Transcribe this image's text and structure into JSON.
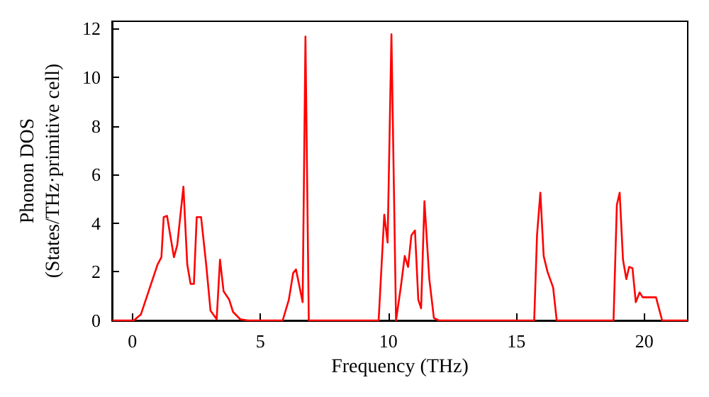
{
  "chart_data": {
    "type": "line",
    "xlabel": "Frequency (THz)",
    "ylabel": "Phonon DOS\n(States/THz·primitive cell)",
    "xlim": [
      -0.8,
      21.7
    ],
    "ylim": [
      0,
      12.3
    ],
    "xticks": [
      0,
      5,
      10,
      15,
      20
    ],
    "yticks": [
      0,
      2,
      4,
      6,
      8,
      10,
      12
    ],
    "grid": false,
    "marker": "none",
    "line_style": "solid",
    "series": [
      {
        "color": "#ff0000",
        "x": [
          -0.78,
          0.05,
          0.33,
          0.98,
          1.13,
          1.22,
          1.35,
          1.62,
          1.75,
          1.99,
          2.14,
          2.27,
          2.4,
          2.51,
          2.68,
          2.88,
          3.05,
          3.29,
          3.42,
          3.56,
          3.78,
          3.93,
          4.21,
          4.5,
          5.87,
          6.11,
          6.28,
          6.39,
          6.65,
          6.76,
          6.89,
          9.62,
          9.84,
          9.97,
          10.12,
          10.3,
          10.49,
          10.64,
          10.77,
          10.9,
          11.04,
          11.17,
          11.28,
          11.41,
          11.6,
          11.78,
          11.97,
          15.7,
          15.81,
          15.94,
          16.07,
          16.22,
          16.44,
          16.58,
          18.8,
          18.93,
          19.04,
          19.17,
          19.3,
          19.41,
          19.54,
          19.67,
          19.82,
          19.94,
          20.46,
          20.7,
          21.7
        ],
        "values": [
          0,
          0,
          0.25,
          2.3,
          2.6,
          4.25,
          4.3,
          2.6,
          3.1,
          5.5,
          2.3,
          1.5,
          1.5,
          4.25,
          4.25,
          2.3,
          0.4,
          0.05,
          2.5,
          1.2,
          0.85,
          0.35,
          0.05,
          0,
          0,
          0.85,
          1.95,
          2.1,
          0.75,
          11.67,
          0,
          0,
          4.35,
          3.2,
          11.77,
          0,
          1.4,
          2.65,
          2.2,
          3.5,
          3.7,
          0.85,
          0.5,
          4.9,
          1.7,
          0.1,
          0,
          0,
          3.5,
          5.25,
          2.65,
          2,
          1.35,
          0,
          0,
          4.75,
          5.25,
          2.5,
          1.7,
          2.2,
          2.15,
          0.75,
          1.15,
          0.95,
          0.95,
          0,
          0
        ]
      }
    ]
  }
}
